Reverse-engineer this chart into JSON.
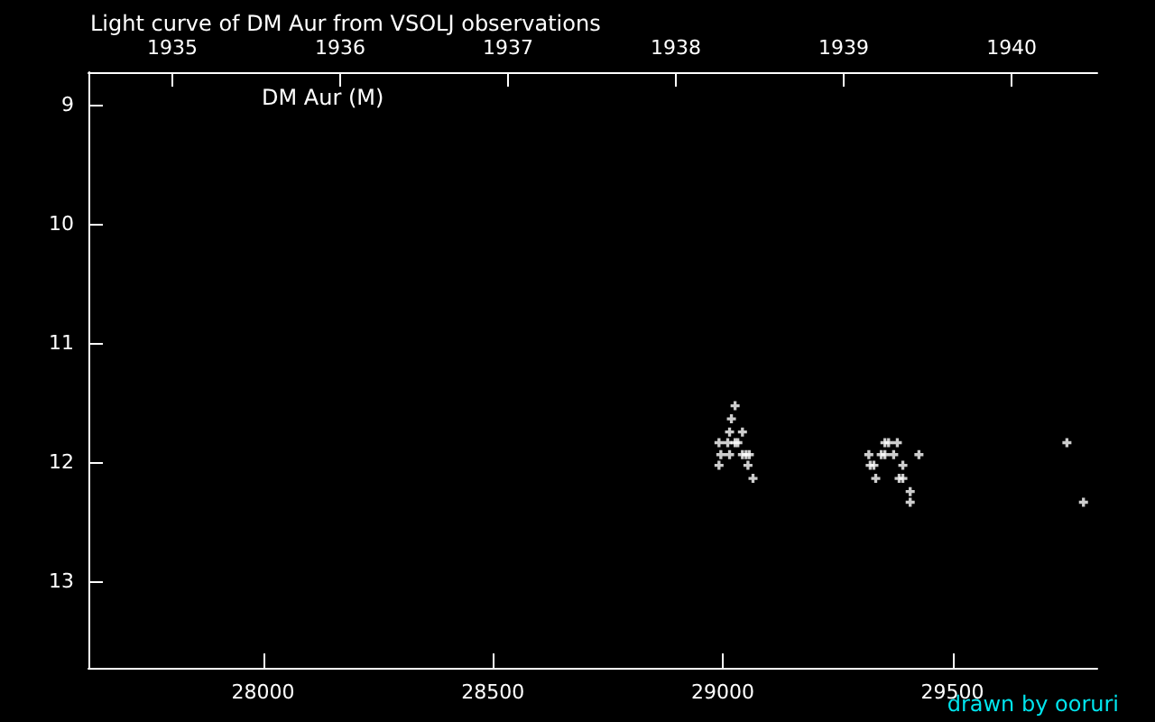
{
  "chart_data": {
    "type": "scatter",
    "title": "Light curve of DM Aur from VSOLJ observations",
    "annotations": [
      "DM Aur (M)",
      "drawn by ooruri"
    ],
    "x": [
      29027,
      29019,
      29015,
      29043,
      28992,
      29011,
      29027,
      29033,
      28996,
      29015,
      29038,
      29043,
      29051,
      29058,
      28992,
      29055,
      29066,
      29353,
      29361,
      29380,
      29318,
      29345,
      29353,
      29372,
      29375,
      29427,
      29321,
      29329,
      29392,
      29333,
      29384,
      29392,
      29408,
      29408,
      29749,
      29785
    ],
    "series": [
      {
        "color": "#ffffff",
        "values": [
          11.53,
          11.64,
          11.75,
          11.75,
          11.84,
          11.84,
          11.84,
          11.84,
          11.94,
          11.94,
          null,
          11.94,
          11.94,
          11.94,
          12.03,
          12.03,
          12.14,
          11.84,
          11.84,
          11.84,
          11.94,
          11.94,
          11.94,
          11.94,
          null,
          11.94,
          12.03,
          12.03,
          12.03,
          12.14,
          12.14,
          12.14,
          12.25,
          12.34,
          11.84,
          12.34
        ]
      }
    ],
    "xlim": [
      27620,
      29815
    ],
    "xticks": [
      28000,
      28500,
      29000,
      29500
    ],
    "x2lim": [
      1934.5,
      1940.51
    ],
    "x2ticks": [
      1935,
      1936,
      1937,
      1938,
      1939,
      1940
    ],
    "ylim": [
      13.73,
      8.73
    ],
    "yticks": [
      9,
      10,
      11,
      12,
      13
    ],
    "marker": "cross",
    "grid": false
  }
}
